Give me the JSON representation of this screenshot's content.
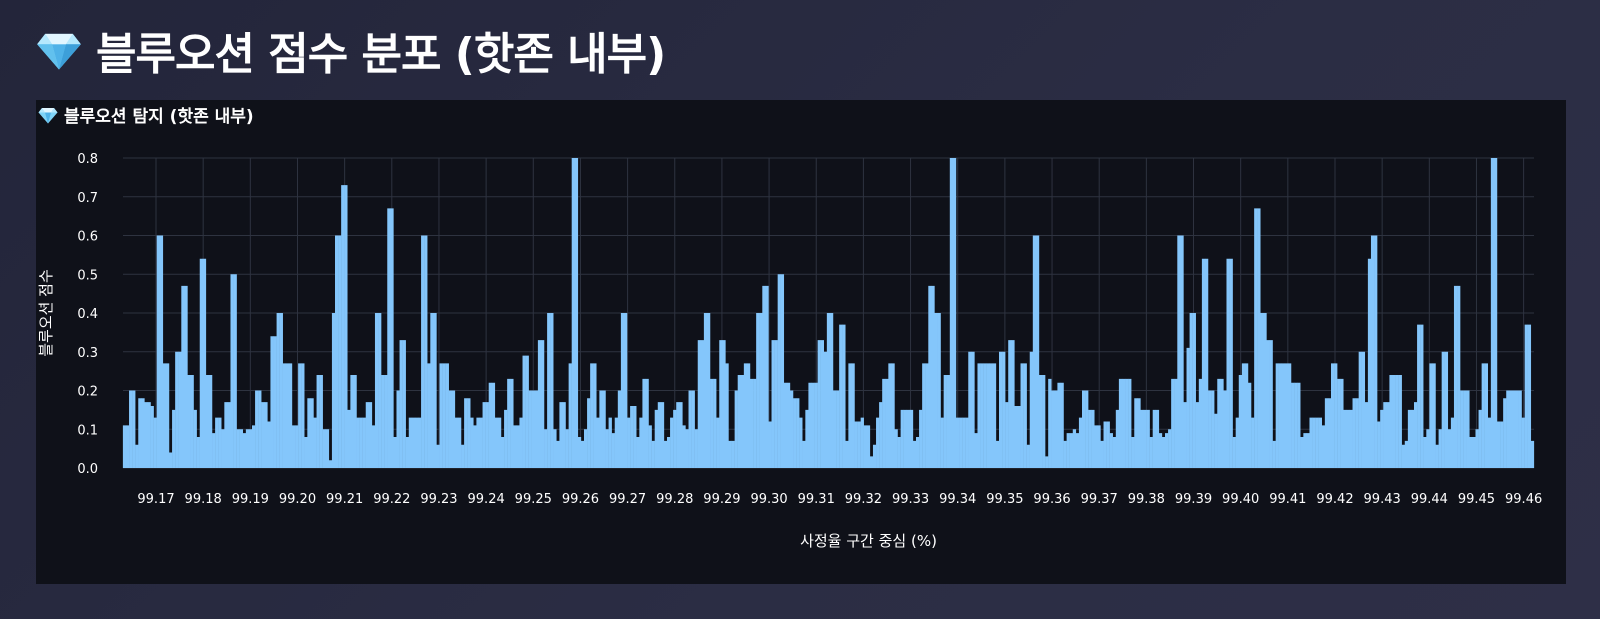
{
  "page": {
    "title_icon": "gem-icon",
    "title": "블루오션 점수 분포 (핫존 내부)"
  },
  "panel": {
    "title_icon": "gem-icon",
    "title": "블루오션 탐지 (핫존 내부)"
  },
  "colors": {
    "bar": "#84c6fb",
    "grid": "#2e3340",
    "panel_bg": "#0f1119",
    "gem": "#7fd3f7"
  },
  "chart_data": {
    "type": "bar",
    "title": "블루오션 탐지 (핫존 내부)",
    "xlabel": "사정율 구간 중심 (%)",
    "ylabel": "블루오션 점수",
    "xlim": [
      99.163,
      99.4622
    ],
    "ylim": [
      0,
      0.8
    ],
    "grid": true,
    "x_ticks": [
      "99.17",
      "99.18",
      "99.19",
      "99.20",
      "99.21",
      "99.22",
      "99.23",
      "99.24",
      "99.25",
      "99.26",
      "99.27",
      "99.28",
      "99.29",
      "99.30",
      "99.31",
      "99.32",
      "99.33",
      "99.34",
      "99.35",
      "99.36",
      "99.37",
      "99.38",
      "99.39",
      "99.40",
      "99.41",
      "99.42",
      "99.43",
      "99.44",
      "99.45",
      "99.46"
    ],
    "y_ticks": [
      "0.0",
      "0.1",
      "0.2",
      "0.3",
      "0.4",
      "0.5",
      "0.6",
      "0.7",
      "0.8"
    ],
    "bar_width": 0.0007,
    "values": [
      0.11,
      0.11,
      0.2,
      0.2,
      0.06,
      0.18,
      0.18,
      0.17,
      0.17,
      0.16,
      0.13,
      0.6,
      0.6,
      0.27,
      0.27,
      0.04,
      0.15,
      0.3,
      0.3,
      0.47,
      0.47,
      0.24,
      0.24,
      0.15,
      0.08,
      0.54,
      0.54,
      0.24,
      0.24,
      0.09,
      0.13,
      0.13,
      0.1,
      0.17,
      0.17,
      0.5,
      0.5,
      0.1,
      0.1,
      0.09,
      0.1,
      0.1,
      0.11,
      0.2,
      0.2,
      0.17,
      0.17,
      0.12,
      0.34,
      0.34,
      0.4,
      0.4,
      0.27,
      0.27,
      0.27,
      0.11,
      0.11,
      0.27,
      0.27,
      0.08,
      0.18,
      0.18,
      0.13,
      0.24,
      0.24,
      0.1,
      0.1,
      0.02,
      0.4,
      0.6,
      0.6,
      0.73,
      0.73,
      0.15,
      0.24,
      0.24,
      0.13,
      0.13,
      0.13,
      0.17,
      0.17,
      0.11,
      0.4,
      0.4,
      0.24,
      0.24,
      0.67,
      0.67,
      0.08,
      0.2,
      0.33,
      0.33,
      0.08,
      0.13,
      0.13,
      0.13,
      0.13,
      0.6,
      0.6,
      0.27,
      0.4,
      0.4,
      0.06,
      0.27,
      0.27,
      0.27,
      0.2,
      0.2,
      0.13,
      0.13,
      0.06,
      0.18,
      0.18,
      0.13,
      0.11,
      0.13,
      0.13,
      0.17,
      0.17,
      0.22,
      0.22,
      0.13,
      0.13,
      0.08,
      0.15,
      0.23,
      0.23,
      0.11,
      0.11,
      0.13,
      0.29,
      0.29,
      0.2,
      0.2,
      0.2,
      0.33,
      0.33,
      0.1,
      0.4,
      0.4,
      0.1,
      0.07,
      0.17,
      0.17,
      0.1,
      0.27,
      0.8,
      0.8,
      0.08,
      0.07,
      0.1,
      0.18,
      0.27,
      0.27,
      0.13,
      0.2,
      0.2,
      0.1,
      0.13,
      0.09,
      0.13,
      0.2,
      0.4,
      0.4,
      0.13,
      0.16,
      0.16,
      0.08,
      0.13,
      0.23,
      0.23,
      0.11,
      0.07,
      0.15,
      0.17,
      0.17,
      0.07,
      0.08,
      0.13,
      0.15,
      0.17,
      0.17,
      0.11,
      0.1,
      0.2,
      0.2,
      0.1,
      0.33,
      0.33,
      0.4,
      0.4,
      0.23,
      0.23,
      0.13,
      0.33,
      0.33,
      0.27,
      0.07,
      0.07,
      0.2,
      0.24,
      0.24,
      0.27,
      0.27,
      0.23,
      0.23,
      0.4,
      0.4,
      0.47,
      0.47,
      0.12,
      0.33,
      0.33,
      0.5,
      0.5,
      0.22,
      0.22,
      0.2,
      0.18,
      0.18,
      0.13,
      0.07,
      0.15,
      0.22,
      0.22,
      0.22,
      0.33,
      0.33,
      0.3,
      0.4,
      0.4,
      0.2,
      0.2,
      0.37,
      0.37,
      0.07,
      0.27,
      0.27,
      0.12,
      0.12,
      0.13,
      0.11,
      0.11,
      0.03,
      0.06,
      0.13,
      0.17,
      0.23,
      0.23,
      0.27,
      0.27,
      0.1,
      0.08,
      0.15,
      0.15,
      0.15,
      0.15,
      0.07,
      0.08,
      0.15,
      0.27,
      0.27,
      0.47,
      0.47,
      0.4,
      0.4,
      0.13,
      0.24,
      0.24,
      0.8,
      0.8,
      0.13,
      0.13,
      0.13,
      0.13,
      0.3,
      0.3,
      0.09,
      0.27,
      0.27,
      0.27,
      0.27,
      0.27,
      0.27,
      0.07,
      0.3,
      0.3,
      0.17,
      0.33,
      0.33,
      0.16,
      0.16,
      0.27,
      0.27,
      0.06,
      0.3,
      0.6,
      0.6,
      0.24,
      0.24,
      0.03,
      0.23,
      0.2,
      0.2,
      0.22,
      0.22,
      0.07,
      0.09,
      0.09,
      0.1,
      0.09,
      0.13,
      0.2,
      0.2,
      0.15,
      0.15,
      0.11,
      0.11,
      0.07,
      0.12,
      0.12,
      0.09,
      0.08,
      0.15,
      0.23,
      0.23,
      0.23,
      0.23,
      0.08,
      0.18,
      0.18,
      0.15,
      0.15,
      0.15,
      0.08,
      0.15,
      0.15,
      0.09,
      0.08,
      0.09,
      0.1,
      0.23,
      0.23,
      0.6,
      0.6,
      0.17,
      0.31,
      0.4,
      0.4,
      0.17,
      0.23,
      0.54,
      0.54,
      0.2,
      0.2,
      0.14,
      0.23,
      0.23,
      0.2,
      0.54,
      0.54,
      0.08,
      0.13,
      0.24,
      0.27,
      0.27,
      0.22,
      0.13,
      0.67,
      0.67,
      0.4,
      0.4,
      0.33,
      0.33,
      0.07,
      0.27,
      0.27,
      0.27,
      0.27,
      0.27,
      0.22,
      0.22,
      0.22,
      0.08,
      0.09,
      0.09,
      0.13,
      0.13,
      0.13,
      0.13,
      0.11,
      0.18,
      0.18,
      0.27,
      0.27,
      0.23,
      0.23,
      0.15,
      0.15,
      0.15,
      0.18,
      0.18,
      0.3,
      0.3,
      0.17,
      0.54,
      0.6,
      0.6,
      0.12,
      0.15,
      0.17,
      0.17,
      0.24,
      0.24,
      0.24,
      0.24,
      0.06,
      0.07,
      0.15,
      0.15,
      0.17,
      0.37,
      0.37,
      0.08,
      0.1,
      0.27,
      0.27,
      0.06,
      0.1,
      0.3,
      0.3,
      0.1,
      0.13,
      0.47,
      0.47,
      0.2,
      0.2,
      0.2,
      0.08,
      0.08,
      0.1,
      0.15,
      0.27,
      0.27,
      0.13,
      0.8,
      0.8,
      0.12,
      0.12,
      0.18,
      0.2,
      0.2,
      0.2,
      0.2,
      0.2,
      0.13,
      0.37,
      0.37,
      0.07
    ]
  }
}
